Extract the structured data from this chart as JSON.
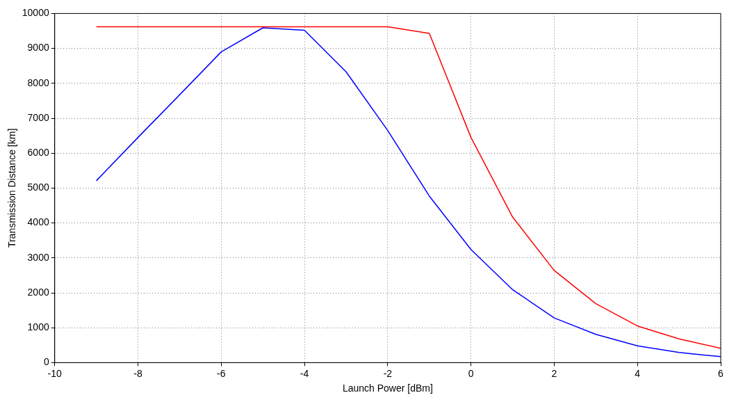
{
  "chart_data": {
    "type": "line",
    "xlabel": "Launch Power [dBm]",
    "ylabel": "Transmission Distance [km]",
    "x": [
      -9,
      -8,
      -7,
      -6,
      -5,
      -4,
      -3,
      -2,
      -1,
      0,
      1,
      2,
      3,
      4,
      5,
      6
    ],
    "series": [
      {
        "color": "#ff0000",
        "values": [
          9620,
          9620,
          9620,
          9620,
          9620,
          9620,
          9620,
          9620,
          9430,
          6450,
          4170,
          2640,
          1690,
          1050,
          680,
          410
        ]
      },
      {
        "color": "#0000ff",
        "values": [
          5210,
          6450,
          7670,
          8900,
          9590,
          9520,
          8330,
          6650,
          4770,
          3240,
          2090,
          1280,
          810,
          480,
          290,
          170
        ]
      }
    ],
    "xlim": [
      -10,
      6
    ],
    "xticks": [
      -10,
      -8,
      -6,
      -4,
      -2,
      0,
      2,
      4,
      6
    ],
    "ylim": [
      0,
      10000
    ],
    "yticks": [
      0,
      1000,
      2000,
      3000,
      4000,
      5000,
      6000,
      7000,
      8000,
      9000,
      10000
    ],
    "grid": true,
    "line_style": "solid",
    "marker": "none",
    "legend": false
  }
}
